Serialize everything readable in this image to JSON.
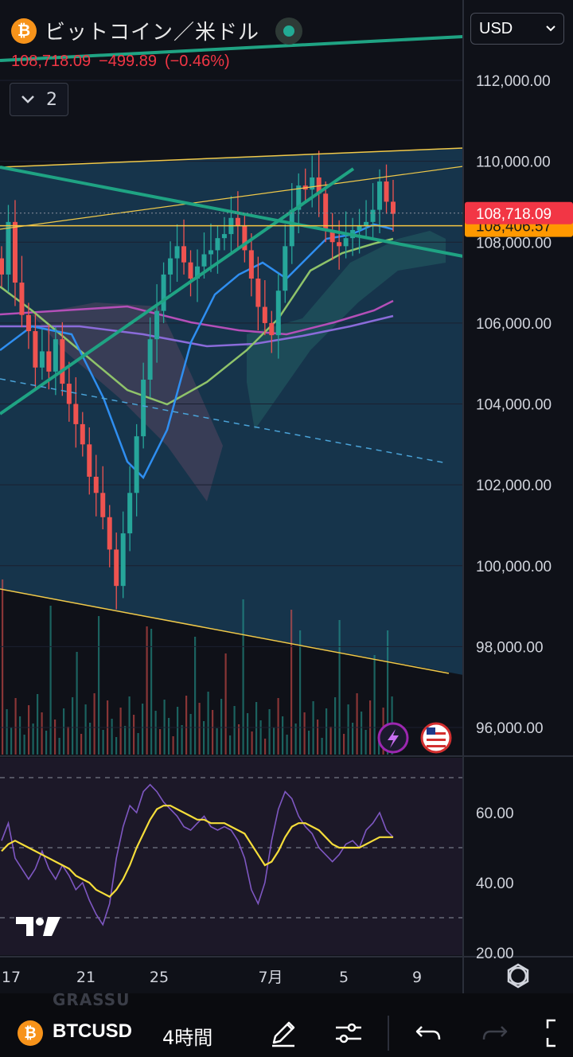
{
  "header": {
    "coin_icon": "bitcoin-icon",
    "title": "ビットコイン／米ドル",
    "last": "108,718.09",
    "change": "−499.89",
    "change_pct": "(−0.46%)",
    "indicator_count": "2",
    "currency": "USD"
  },
  "price_scale": {
    "ticks": [
      "112,000.00",
      "110,000.00",
      "108,000.00",
      "106,000.00",
      "104,000.00",
      "102,000.00",
      "100,000.00",
      "98,000.00",
      "96,000.00"
    ],
    "last_price_label": "108,718.09",
    "hline_label": "108,406.57"
  },
  "rsi_scale": {
    "ticks": [
      "60.00",
      "40.00",
      "20.00"
    ]
  },
  "time_axis": {
    "labels": [
      "17",
      "21",
      "25",
      "7月",
      "5",
      "9"
    ]
  },
  "bottom_bar": {
    "ghost_text": "GRASSU",
    "symbol": "BTCUSD",
    "interval": "4時間",
    "icons": [
      "draw-pen-icon",
      "indicator-settings-icon",
      "undo-icon",
      "redo-icon",
      "fullscreen-icon"
    ]
  },
  "colors": {
    "background": "#0f1118",
    "up": "#26a69a",
    "down": "#ef5350",
    "price_label_bg": "#f23645",
    "hline_label_bg": "#ff9800",
    "trendline_green": "#1fa383",
    "channel_yellow": "#f0c94a",
    "ma_blue": "#2f8ef0",
    "ma_green": "#8fc36a",
    "ma_purple": "#8a6bd9",
    "ma_magenta": "#b44fb8",
    "rsi_line": "#7e57c2",
    "rsi_ma": "#f5dd3a"
  },
  "chart_data": [
    {
      "type": "candlestick",
      "y_range": [
        95000,
        113000
      ],
      "y_ticks": [
        112000,
        110000,
        108000,
        106000,
        104000,
        102000,
        100000,
        98000,
        96000
      ],
      "last_price": 108718.09,
      "horizontal_line": 108406.57,
      "x_labels": [
        "17",
        "21",
        "25",
        "7月",
        "5",
        "9"
      ],
      "close_series": [
        107200,
        108500,
        107000,
        106200,
        105800,
        104900,
        105300,
        104800,
        105600,
        104500,
        104000,
        103500,
        103000,
        102200,
        101800,
        101200,
        100400,
        99500,
        100800,
        101800,
        103200,
        104600,
        105600,
        106300,
        107200,
        107600,
        107900,
        107500,
        107100,
        107400,
        107700,
        107800,
        108100,
        108200,
        108600,
        108400,
        107800,
        107100,
        106400,
        106000,
        105700,
        106800,
        107900,
        108800,
        109400,
        109300,
        109600,
        109200,
        108300,
        108000,
        107900,
        108100,
        108300,
        108400,
        108500,
        108800,
        109500,
        109000,
        108700
      ]
    },
    {
      "type": "line",
      "title": "RSI",
      "y_range": [
        20,
        70
      ],
      "y_ticks": [
        60,
        40,
        20
      ],
      "series": [
        {
          "values": [
            52,
            57,
            47,
            44,
            41,
            44,
            49,
            44,
            41,
            45,
            42,
            38,
            40,
            35,
            31,
            28,
            34,
            47,
            56,
            62,
            60,
            66,
            68,
            66,
            63,
            61,
            59,
            56,
            55,
            57,
            59,
            56,
            55,
            56,
            55,
            52,
            47,
            38,
            34,
            40,
            52,
            61,
            66,
            64,
            59,
            56,
            54,
            50,
            48,
            46,
            48,
            51,
            52,
            50,
            55,
            57,
            60,
            55,
            53
          ]
        },
        {
          "values": [
            49,
            51,
            52,
            51,
            50,
            49,
            48,
            47,
            46,
            45,
            44,
            42,
            41,
            40,
            38,
            37,
            36,
            38,
            41,
            45,
            50,
            54,
            58,
            61,
            62,
            62,
            61,
            60,
            59,
            58,
            58,
            57,
            57,
            57,
            56,
            55,
            54,
            51,
            48,
            45,
            46,
            49,
            53,
            56,
            57,
            57,
            56,
            55,
            53,
            51,
            50,
            50,
            50,
            50,
            51,
            52,
            53,
            53,
            53
          ]
        }
      ]
    }
  ]
}
